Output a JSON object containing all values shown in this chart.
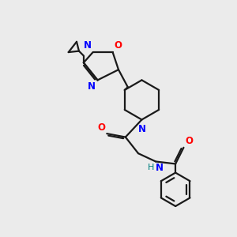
{
  "bg_color": "#ebebeb",
  "bond_color": "#1a1a1a",
  "N_color": "#0000ff",
  "O_color": "#ff0000",
  "NH_color": "#008080",
  "line_width": 1.6,
  "font_size": 8.5,
  "xlim": [
    0,
    10
  ],
  "ylim": [
    0,
    10
  ]
}
